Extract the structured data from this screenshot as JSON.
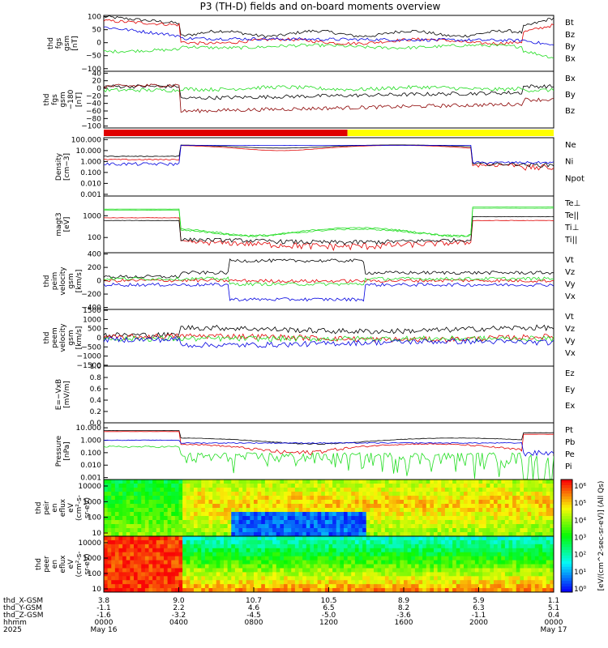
{
  "title": "P3 (TH-D) fields and on-board moments overview",
  "colors": {
    "black": "#000000",
    "red": "#e00000",
    "green": "#22dd22",
    "blue": "#0000e0",
    "darkred": "#8b0000",
    "yellow": "#ffff00"
  },
  "chart_data": [
    {
      "type": "line",
      "id": "fgs",
      "ylabel": [
        "thd",
        "fgs",
        "gsm",
        "[nT]"
      ],
      "yticks": [
        "100",
        "50",
        "0",
        "−50",
        "−100"
      ],
      "ylim": [
        -110,
        105
      ],
      "legend": [
        {
          "label": "Bt",
          "color": "black"
        },
        {
          "label": "Bz",
          "color": "red"
        },
        {
          "label": "By",
          "color": "green"
        },
        {
          "label": "Bx",
          "color": "blue"
        }
      ]
    },
    {
      "type": "line",
      "id": "fgs_angle",
      "ylabel": [
        "thd",
        "fgs",
        "gsm",
        "−180",
        "[nT]"
      ],
      "yticks": [
        "40",
        "20",
        "0",
        "−20",
        "−40",
        "−60",
        "−80",
        "−100"
      ],
      "ylim": [
        -105,
        45
      ],
      "legend": [
        {
          "label": "Bx",
          "color": "black"
        },
        {
          "label": "By",
          "color": "green"
        },
        {
          "label": "Bz",
          "color": "darkred"
        }
      ]
    },
    {
      "type": "bar",
      "id": "mode_bar",
      "segments": [
        {
          "from": "0000",
          "to": "1300",
          "color": "red"
        },
        {
          "from": "1300",
          "to": "2400",
          "color": "yellow"
        }
      ]
    },
    {
      "type": "line",
      "id": "density",
      "scale": "log",
      "ylabel": [
        "Density",
        "[cm−3]"
      ],
      "yticks": [
        "100.000",
        "10.000",
        "1.000",
        "0.100",
        "0.010",
        "0.001"
      ],
      "ylim": [
        0.0007,
        150
      ],
      "legend": [
        {
          "label": "Ne",
          "color": "red"
        },
        {
          "label": "Ni",
          "color": "black"
        },
        {
          "label": "Npot",
          "color": "blue"
        }
      ]
    },
    {
      "type": "line",
      "id": "temperature",
      "scale": "log",
      "ylabel": [
        "magt3",
        "[eV]"
      ],
      "yticks": [
        "1000",
        "100"
      ],
      "ylim": [
        20,
        8000
      ],
      "legend": [
        {
          "label": "Te⊥",
          "color": "red"
        },
        {
          "label": "Te||",
          "color": "black"
        },
        {
          "label": "Ti⊥",
          "color": "green"
        },
        {
          "label": "Ti||",
          "color": "green"
        }
      ]
    },
    {
      "type": "line",
      "id": "peim",
      "ylabel": [
        "thd",
        "peim",
        "velocity",
        "gsm",
        "[km/s]"
      ],
      "yticks": [
        "400",
        "200",
        "0",
        "−200",
        "−400"
      ],
      "ylim": [
        -430,
        420
      ],
      "legend": [
        {
          "label": "Vt",
          "color": "black"
        },
        {
          "label": "Vz",
          "color": "red"
        },
        {
          "label": "Vy",
          "color": "green"
        },
        {
          "label": "Vx",
          "color": "blue"
        }
      ]
    },
    {
      "type": "line",
      "id": "peem",
      "ylabel": [
        "thd",
        "peem",
        "velocity",
        "gsm",
        "[km/s]"
      ],
      "yticks": [
        "1500",
        "1000",
        "500",
        "0",
        "−500",
        "−1000",
        "−1500"
      ],
      "ylim": [
        -1550,
        1550
      ],
      "legend": [
        {
          "label": "Vt",
          "color": "black"
        },
        {
          "label": "Vz",
          "color": "red"
        },
        {
          "label": "Vy",
          "color": "green"
        },
        {
          "label": "Vx",
          "color": "blue"
        }
      ]
    },
    {
      "type": "line",
      "id": "efield",
      "ylabel": [
        "E=−VxB",
        "[mV/m]"
      ],
      "yticks": [
        "1.0",
        "0.8",
        "0.6",
        "0.4",
        "0.2",
        "0.0"
      ],
      "ylim": [
        0,
        1
      ],
      "legend": [
        {
          "label": "Ez",
          "color": "red"
        },
        {
          "label": "Ey",
          "color": "green"
        },
        {
          "label": "Ex",
          "color": "blue"
        }
      ]
    },
    {
      "type": "line",
      "id": "pressure",
      "scale": "log",
      "ylabel": [
        "Pressure",
        "[nPa]"
      ],
      "yticks": [
        "10.000",
        "1.000",
        "0.100",
        "0.010",
        "0.001"
      ],
      "ylim": [
        0.0007,
        25
      ],
      "legend": [
        {
          "label": "Pt",
          "color": "black"
        },
        {
          "label": "Pb",
          "color": "red"
        },
        {
          "label": "Pe",
          "color": "green"
        },
        {
          "label": "Pi",
          "color": "blue"
        }
      ]
    },
    {
      "type": "heatmap",
      "id": "peir",
      "ylabel": [
        "thd",
        "peir",
        "en",
        "eflux",
        "eV",
        "(cm²-s-",
        "sr-eV)"
      ],
      "yticks": [
        "10000",
        "1000",
        "100",
        "10"
      ]
    },
    {
      "type": "heatmap",
      "id": "peer",
      "ylabel": [
        "thd",
        "peer",
        "en",
        "eflux",
        "eV",
        "(cm²-s-",
        "sr-eV)"
      ],
      "yticks": [
        "10000",
        "1000",
        "100",
        "10"
      ]
    }
  ],
  "colorbar": {
    "label": "[eV/(cm^2-sec-sr-eV)] (All Qs)",
    "ticks": [
      "10⁶",
      "10⁵",
      "10⁴",
      "10³",
      "10²",
      "10¹",
      "10⁰"
    ]
  },
  "xaxis": {
    "row_labels": [
      "thd_X-GSM",
      "thd_Y-GSM",
      "thd_Z-GSM",
      "hhmm",
      "2025"
    ],
    "columns": [
      [
        "3.8",
        "-1.1",
        "-1.6",
        "0000",
        "May 16"
      ],
      [
        "9.0",
        "2.2",
        "-3.2",
        "0400",
        ""
      ],
      [
        "10.7",
        "4.6",
        "-4.5",
        "0800",
        ""
      ],
      [
        "10.5",
        "6.5",
        "-5.0",
        "1200",
        ""
      ],
      [
        "8.9",
        "8.2",
        "-3.6",
        "1600",
        ""
      ],
      [
        "5.9",
        "6.3",
        "-1.1",
        "2000",
        ""
      ],
      [
        "1.1",
        "5.1",
        "0.4",
        "0000",
        "May 17"
      ]
    ]
  }
}
